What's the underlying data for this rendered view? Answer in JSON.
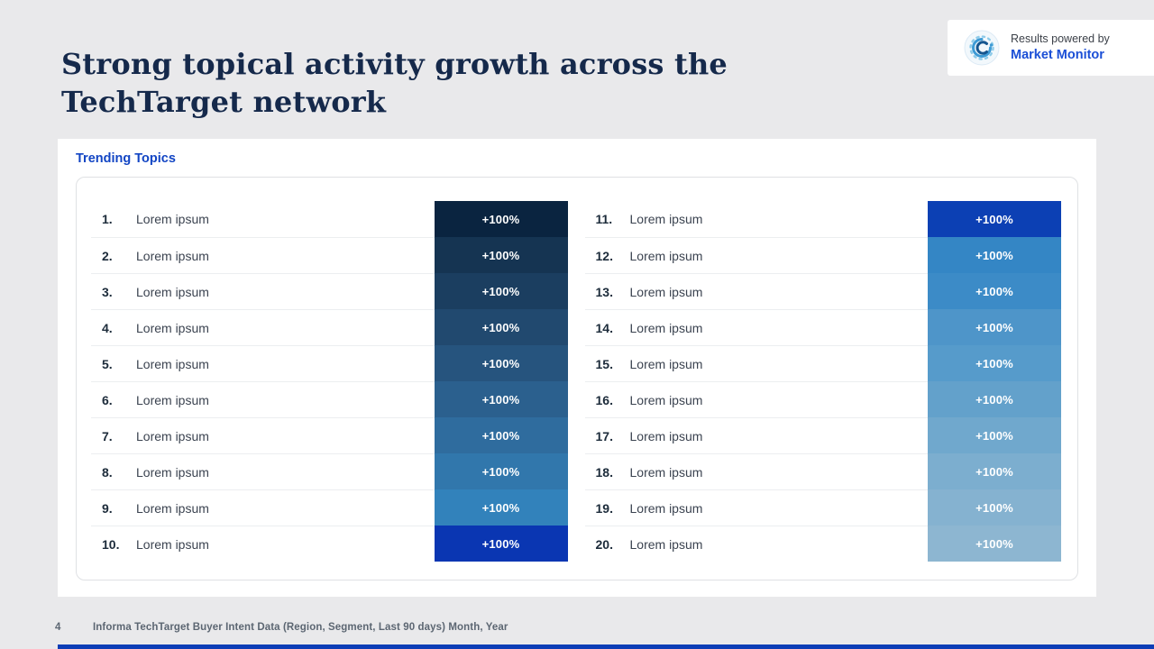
{
  "slide": {
    "title": "Strong topical activity growth across the\nTechTarget network",
    "page_number": "4",
    "footer": "Informa TechTarget Buyer Intent Data (Region, Segment, Last 90 days) Month, Year"
  },
  "branding": {
    "powered_by_line": "Results powered by",
    "brand_name": "Market Monitor",
    "logo_icon": "market-monitor-swirl-icon",
    "brand_blue": "#1b4fd6"
  },
  "trending": {
    "heading": "Trending Topics",
    "columns": [
      {
        "name": "left",
        "items": [
          {
            "rank": "1.",
            "topic": "Lorem ipsum",
            "growth": "+100%",
            "color": "#0a2440"
          },
          {
            "rank": "2.",
            "topic": "Lorem ipsum",
            "growth": "+100%",
            "color": "#153452"
          },
          {
            "rank": "3.",
            "topic": "Lorem ipsum",
            "growth": "+100%",
            "color": "#1b3e60"
          },
          {
            "rank": "4.",
            "topic": "Lorem ipsum",
            "growth": "+100%",
            "color": "#21496f"
          },
          {
            "rank": "5.",
            "topic": "Lorem ipsum",
            "growth": "+100%",
            "color": "#26547e"
          },
          {
            "rank": "6.",
            "topic": "Lorem ipsum",
            "growth": "+100%",
            "color": "#2b608e"
          },
          {
            "rank": "7.",
            "topic": "Lorem ipsum",
            "growth": "+100%",
            "color": "#2f6c9e"
          },
          {
            "rank": "8.",
            "topic": "Lorem ipsum",
            "growth": "+100%",
            "color": "#3177ac"
          },
          {
            "rank": "9.",
            "topic": "Lorem ipsum",
            "growth": "+100%",
            "color": "#3282bb"
          },
          {
            "rank": "10.",
            "topic": "Lorem ipsum",
            "growth": "+100%",
            "color": "#0a36b2"
          }
        ]
      },
      {
        "name": "right",
        "items": [
          {
            "rank": "11.",
            "topic": "Lorem ipsum",
            "growth": "+100%",
            "color": "#0c40b4"
          },
          {
            "rank": "12.",
            "topic": "Lorem ipsum",
            "growth": "+100%",
            "color": "#3486c5"
          },
          {
            "rank": "13.",
            "topic": "Lorem ipsum",
            "growth": "+100%",
            "color": "#3c8bc7"
          },
          {
            "rank": "14.",
            "topic": "Lorem ipsum",
            "growth": "+100%",
            "color": "#4e95c9"
          },
          {
            "rank": "15.",
            "topic": "Lorem ipsum",
            "growth": "+100%",
            "color": "#569bcb"
          },
          {
            "rank": "16.",
            "topic": "Lorem ipsum",
            "growth": "+100%",
            "color": "#63a1cb"
          },
          {
            "rank": "17.",
            "topic": "Lorem ipsum",
            "growth": "+100%",
            "color": "#70a8cd"
          },
          {
            "rank": "18.",
            "topic": "Lorem ipsum",
            "growth": "+100%",
            "color": "#7caecf"
          },
          {
            "rank": "19.",
            "topic": "Lorem ipsum",
            "growth": "+100%",
            "color": "#85b2d0"
          },
          {
            "rank": "20.",
            "topic": "Lorem ipsum",
            "growth": "+100%",
            "color": "#8db6d1"
          }
        ]
      }
    ]
  },
  "colors": {
    "background": "#e9e9eb",
    "title_navy": "#15294b",
    "heading_blue": "#1245c4",
    "accent_blue": "#0c3db6",
    "footer_gray": "#5c6672"
  }
}
